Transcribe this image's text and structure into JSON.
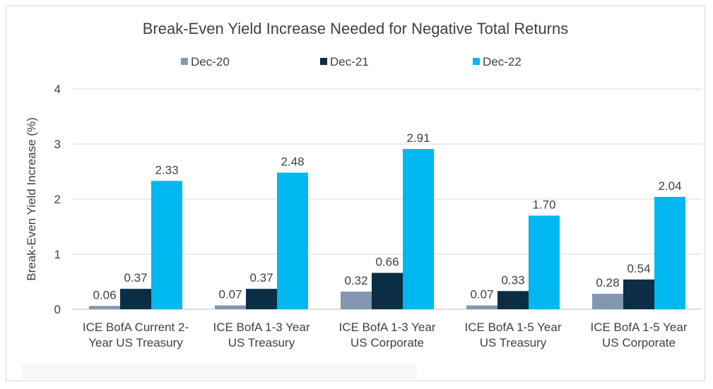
{
  "chart_data": {
    "type": "bar",
    "title": "Break-Even Yield Increase Needed for Negative Total Returns",
    "xlabel": "",
    "ylabel": "Break-Even Yield Increase (%)",
    "ylim": [
      0,
      4
    ],
    "yticks": [
      0,
      1,
      2,
      3,
      4
    ],
    "grid": true,
    "legend_position": "top",
    "categories": [
      [
        "ICE BofA Current 2-",
        "Year US Treasury"
      ],
      [
        "ICE BofA 1-3 Year",
        "US Treasury"
      ],
      [
        "ICE BofA 1-3 Year",
        "US Corporate"
      ],
      [
        "ICE BofA 1-5 Year",
        "US Treasury"
      ],
      [
        "ICE BofA 1-5 Year",
        "US Corporate"
      ]
    ],
    "series": [
      {
        "name": "Dec-20",
        "color": "#8497b0",
        "values": [
          0.06,
          0.07,
          0.32,
          0.07,
          0.28
        ],
        "labels": [
          "0.06",
          "0.07",
          "0.32",
          "0.07",
          "0.28"
        ]
      },
      {
        "name": "Dec-21",
        "color": "#0b2d45",
        "values": [
          0.37,
          0.37,
          0.66,
          0.33,
          0.54
        ],
        "labels": [
          "0.37",
          "0.37",
          "0.66",
          "0.33",
          "0.54"
        ]
      },
      {
        "name": "Dec-22",
        "color": "#00b7ef",
        "values": [
          2.33,
          2.48,
          2.91,
          1.7,
          2.04
        ],
        "labels": [
          "2.33",
          "2.48",
          "2.91",
          "1.70",
          "2.04"
        ]
      }
    ]
  }
}
